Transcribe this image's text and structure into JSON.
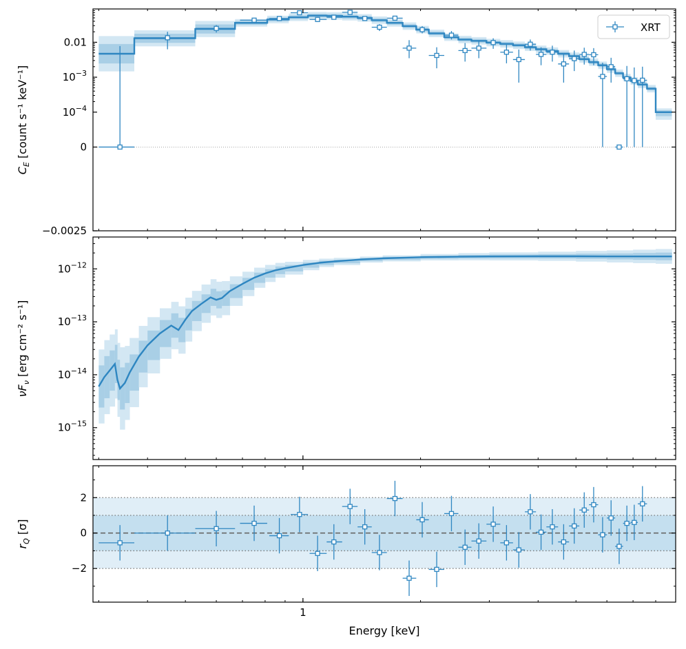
{
  "colors": {
    "model": "#2e86c1",
    "data": "#2e86c1",
    "band_dark": "#a9cfe6",
    "band_light": "#d3e7f3",
    "axis": "#000000",
    "ref_line": "#555555"
  },
  "chart_data": [
    {
      "type": "line",
      "panel": "counts",
      "ylabel_main": "C",
      "ylabel_sub": "E",
      "ylabel_rest": " [count s⁻¹ keV⁻¹]",
      "yscale": "symlog",
      "linthresh": 0.0001,
      "ylim": [
        -0.0025,
        0.09
      ],
      "ytick_labels": [
        {
          "value": 0.01,
          "text": "0.01"
        },
        {
          "value": 0.001,
          "base": "10",
          "exp": "−3"
        },
        {
          "value": 0.0001,
          "base": "10",
          "exp": "−4"
        },
        {
          "value": 0,
          "text": "0"
        },
        {
          "value": -0.0025,
          "text": "−0.0025"
        }
      ],
      "legend": {
        "label": "XRT",
        "position": "top-right"
      },
      "model_edges": [
        0.3,
        0.37,
        0.53,
        0.67,
        0.81,
        0.92,
        1.03,
        1.15,
        1.26,
        1.38,
        1.5,
        1.64,
        1.8,
        1.95,
        2.1,
        2.3,
        2.5,
        2.7,
        2.95,
        3.2,
        3.45,
        3.7,
        3.95,
        4.2,
        4.5,
        4.8,
        5.1,
        5.4,
        5.7,
        6.0,
        6.3,
        6.6,
        6.9,
        7.2,
        7.6,
        8.0,
        8.4,
        8.8
      ],
      "model_values": [
        0.0047,
        0.013,
        0.024,
        0.036,
        0.045,
        0.052,
        0.058,
        0.057,
        0.054,
        0.05,
        0.043,
        0.036,
        0.029,
        0.023,
        0.018,
        0.014,
        0.012,
        0.011,
        0.0098,
        0.009,
        0.0082,
        0.0072,
        0.0063,
        0.0056,
        0.0047,
        0.004,
        0.0033,
        0.0027,
        0.0022,
        0.0017,
        0.0013,
        0.00098,
        0.00078,
        0.00062,
        0.00047,
        0.0001,
        0.0001
      ],
      "points": [
        {
          "x": 0.34,
          "xlo": 0.3,
          "xhi": 0.37,
          "y": 0.0,
          "ylo": 0.0,
          "yhi": 0.0078
        },
        {
          "x": 0.45,
          "xlo": 0.37,
          "xhi": 0.53,
          "y": 0.0135,
          "ylo": 0.0063,
          "yhi": 0.02
        },
        {
          "x": 0.6,
          "xlo": 0.53,
          "xhi": 0.67,
          "y": 0.025,
          "ylo": 0.019,
          "yhi": 0.031
        },
        {
          "x": 0.75,
          "xlo": 0.69,
          "xhi": 0.81,
          "y": 0.043,
          "ylo": 0.035,
          "yhi": 0.05
        },
        {
          "x": 0.87,
          "xlo": 0.82,
          "xhi": 0.92,
          "y": 0.048,
          "ylo": 0.041,
          "yhi": 0.055
        },
        {
          "x": 0.98,
          "xlo": 0.93,
          "xhi": 1.03,
          "y": 0.07,
          "ylo": 0.062,
          "yhi": 0.078
        },
        {
          "x": 1.09,
          "xlo": 1.04,
          "xhi": 1.15,
          "y": 0.045,
          "ylo": 0.038,
          "yhi": 0.053
        },
        {
          "x": 1.2,
          "xlo": 1.15,
          "xhi": 1.26,
          "y": 0.052,
          "ylo": 0.045,
          "yhi": 0.06
        },
        {
          "x": 1.32,
          "xlo": 1.26,
          "xhi": 1.38,
          "y": 0.072,
          "ylo": 0.064,
          "yhi": 0.08
        },
        {
          "x": 1.44,
          "xlo": 1.38,
          "xhi": 1.5,
          "y": 0.048,
          "ylo": 0.041,
          "yhi": 0.055
        },
        {
          "x": 1.57,
          "xlo": 1.5,
          "xhi": 1.64,
          "y": 0.027,
          "ylo": 0.021,
          "yhi": 0.033
        },
        {
          "x": 1.72,
          "xlo": 1.64,
          "xhi": 1.8,
          "y": 0.049,
          "ylo": 0.042,
          "yhi": 0.056
        },
        {
          "x": 1.87,
          "xlo": 1.8,
          "xhi": 1.95,
          "y": 0.0068,
          "ylo": 0.0035,
          "yhi": 0.0115
        },
        {
          "x": 2.02,
          "xlo": 1.95,
          "xhi": 2.1,
          "y": 0.023,
          "ylo": 0.018,
          "yhi": 0.029
        },
        {
          "x": 2.2,
          "xlo": 2.1,
          "xhi": 2.3,
          "y": 0.0042,
          "ylo": 0.0018,
          "yhi": 0.0072
        },
        {
          "x": 2.4,
          "xlo": 2.3,
          "xhi": 2.5,
          "y": 0.016,
          "ylo": 0.012,
          "yhi": 0.021
        },
        {
          "x": 2.6,
          "xlo": 2.5,
          "xhi": 2.7,
          "y": 0.0058,
          "ylo": 0.0028,
          "yhi": 0.0095
        },
        {
          "x": 2.82,
          "xlo": 2.7,
          "xhi": 2.95,
          "y": 0.0068,
          "ylo": 0.0035,
          "yhi": 0.0105
        },
        {
          "x": 3.07,
          "xlo": 2.95,
          "xhi": 3.2,
          "y": 0.0098,
          "ylo": 0.0065,
          "yhi": 0.013
        },
        {
          "x": 3.32,
          "xlo": 3.2,
          "xhi": 3.45,
          "y": 0.0052,
          "ylo": 0.0025,
          "yhi": 0.0085
        },
        {
          "x": 3.57,
          "xlo": 3.45,
          "xhi": 3.7,
          "y": 0.0032,
          "ylo": 0.0007,
          "yhi": 0.0062
        },
        {
          "x": 3.82,
          "xlo": 3.7,
          "xhi": 3.95,
          "y": 0.0088,
          "ylo": 0.0058,
          "yhi": 0.012
        },
        {
          "x": 4.07,
          "xlo": 3.95,
          "xhi": 4.2,
          "y": 0.0045,
          "ylo": 0.0022,
          "yhi": 0.0072
        },
        {
          "x": 4.35,
          "xlo": 4.2,
          "xhi": 4.5,
          "y": 0.0052,
          "ylo": 0.0028,
          "yhi": 0.008
        },
        {
          "x": 4.65,
          "xlo": 4.5,
          "xhi": 4.8,
          "y": 0.0024,
          "ylo": 0.0007,
          "yhi": 0.0045
        },
        {
          "x": 4.95,
          "xlo": 4.8,
          "xhi": 5.1,
          "y": 0.0034,
          "ylo": 0.0015,
          "yhi": 0.0058
        },
        {
          "x": 5.25,
          "xlo": 5.1,
          "xhi": 5.4,
          "y": 0.0045,
          "ylo": 0.0023,
          "yhi": 0.007
        },
        {
          "x": 5.55,
          "xlo": 5.4,
          "xhi": 5.7,
          "y": 0.0044,
          "ylo": 0.0022,
          "yhi": 0.0068
        },
        {
          "x": 5.85,
          "xlo": 5.7,
          "xhi": 6.0,
          "y": 0.00105,
          "ylo": 0.0,
          "yhi": 0.0026
        },
        {
          "x": 6.15,
          "xlo": 6.0,
          "xhi": 6.3,
          "y": 0.002,
          "ylo": 0.0007,
          "yhi": 0.0036
        },
        {
          "x": 6.45,
          "xlo": 6.3,
          "xhi": 6.6,
          "y": 0.0,
          "ylo": 0.0,
          "yhi": 0.0
        },
        {
          "x": 6.75,
          "xlo": 6.6,
          "xhi": 6.9,
          "y": 0.0009,
          "ylo": 0.0,
          "yhi": 0.0021
        },
        {
          "x": 7.05,
          "xlo": 6.9,
          "xhi": 7.2,
          "y": 0.0008,
          "ylo": 0.0,
          "yhi": 0.0019
        },
        {
          "x": 7.4,
          "xlo": 7.2,
          "xhi": 7.6,
          "y": 0.00082,
          "ylo": 0.0,
          "yhi": 0.002
        }
      ]
    },
    {
      "type": "line",
      "panel": "flux",
      "ylabel_main": "νF",
      "ylabel_sub": "ν",
      "ylabel_rest": " [erg cm⁻² s⁻¹]",
      "yscale": "log",
      "ylim": [
        2.5e-16,
        4e-12
      ],
      "ytick_labels": [
        {
          "value": 1e-12,
          "base": "10",
          "exp": "−12"
        },
        {
          "value": 1e-13,
          "base": "10",
          "exp": "−13"
        },
        {
          "value": 1e-14,
          "base": "10",
          "exp": "−14"
        },
        {
          "value": 1e-15,
          "base": "10",
          "exp": "−15"
        }
      ],
      "x": [
        0.3,
        0.31,
        0.32,
        0.33,
        0.335,
        0.34,
        0.35,
        0.36,
        0.38,
        0.4,
        0.43,
        0.46,
        0.48,
        0.5,
        0.52,
        0.55,
        0.58,
        0.6,
        0.62,
        0.65,
        0.7,
        0.75,
        0.8,
        0.85,
        0.9,
        1.0,
        1.1,
        1.2,
        1.4,
        1.6,
        2.0,
        2.5,
        3.0,
        4.0,
        5.0,
        6.0,
        7.0,
        8.0,
        8.8
      ],
      "y": [
        6e-15,
        9e-15,
        1.2e-14,
        1.6e-14,
        8e-15,
        5.5e-15,
        7e-15,
        1.1e-14,
        2.2e-14,
        3.6e-14,
        6e-14,
        8.5e-14,
        7e-14,
        1.1e-13,
        1.6e-13,
        2.2e-13,
        2.9e-13,
        2.6e-13,
        2.8e-13,
        3.8e-13,
        5.2e-13,
        6.8e-13,
        8.2e-13,
        9.4e-13,
        1.03e-12,
        1.18e-12,
        1.3e-12,
        1.38e-12,
        1.5e-12,
        1.58e-12,
        1.66e-12,
        1.7e-12,
        1.72e-12,
        1.73e-12,
        1.73e-12,
        1.72e-12,
        1.72e-12,
        1.72e-12,
        1.72e-12
      ],
      "band1_factor": [
        2.5,
        2.5,
        2.4,
        2.3,
        2.4,
        2.5,
        2.4,
        2.2,
        2.0,
        1.9,
        1.8,
        1.7,
        1.7,
        1.6,
        1.55,
        1.5,
        1.45,
        1.45,
        1.4,
        1.35,
        1.3,
        1.25,
        1.2,
        1.18,
        1.15,
        1.12,
        1.1,
        1.08,
        1.07,
        1.07,
        1.07,
        1.08,
        1.09,
        1.1,
        1.12,
        1.14,
        1.16,
        1.18,
        1.2
      ],
      "band2_factor": [
        5,
        5,
        4.8,
        4.5,
        5,
        6,
        5,
        4.5,
        3.8,
        3.4,
        3.0,
        2.8,
        2.8,
        2.6,
        2.4,
        2.3,
        2.2,
        2.2,
        2.1,
        1.9,
        1.7,
        1.55,
        1.45,
        1.38,
        1.32,
        1.25,
        1.2,
        1.17,
        1.14,
        1.14,
        1.15,
        1.17,
        1.19,
        1.22,
        1.26,
        1.3,
        1.34,
        1.38,
        1.42
      ]
    },
    {
      "type": "scatter",
      "panel": "residuals",
      "ylabel_main": "r",
      "ylabel_sub": "Q",
      "ylabel_rest": " [σ]",
      "ylim": [
        -3.9,
        3.8
      ],
      "ytick_labels": [
        {
          "value": 2,
          "text": "2"
        },
        {
          "value": 0,
          "text": "0"
        },
        {
          "value": -2,
          "text": "−2"
        }
      ],
      "reference_lines": [
        2,
        1,
        0,
        -1,
        -2
      ],
      "points": [
        {
          "x": 0.34,
          "xlo": 0.3,
          "xhi": 0.37,
          "y": -0.55
        },
        {
          "x": 0.45,
          "xlo": 0.37,
          "xhi": 0.53,
          "y": 0.0
        },
        {
          "x": 0.6,
          "xlo": 0.53,
          "xhi": 0.67,
          "y": 0.25
        },
        {
          "x": 0.75,
          "xlo": 0.69,
          "xhi": 0.81,
          "y": 0.55
        },
        {
          "x": 0.87,
          "xlo": 0.82,
          "xhi": 0.92,
          "y": -0.15
        },
        {
          "x": 0.98,
          "xlo": 0.93,
          "xhi": 1.03,
          "y": 1.05
        },
        {
          "x": 1.09,
          "xlo": 1.04,
          "xhi": 1.15,
          "y": -1.15
        },
        {
          "x": 1.2,
          "xlo": 1.15,
          "xhi": 1.26,
          "y": -0.5
        },
        {
          "x": 1.32,
          "xlo": 1.26,
          "xhi": 1.38,
          "y": 1.5
        },
        {
          "x": 1.44,
          "xlo": 1.38,
          "xhi": 1.5,
          "y": 0.35
        },
        {
          "x": 1.57,
          "xlo": 1.5,
          "xhi": 1.64,
          "y": -1.1
        },
        {
          "x": 1.72,
          "xlo": 1.64,
          "xhi": 1.8,
          "y": 1.95
        },
        {
          "x": 1.87,
          "xlo": 1.8,
          "xhi": 1.95,
          "y": -2.55
        },
        {
          "x": 2.02,
          "xlo": 1.95,
          "xhi": 2.1,
          "y": 0.75
        },
        {
          "x": 2.2,
          "xlo": 2.1,
          "xhi": 2.3,
          "y": -2.05
        },
        {
          "x": 2.4,
          "xlo": 2.3,
          "xhi": 2.5,
          "y": 1.1
        },
        {
          "x": 2.6,
          "xlo": 2.5,
          "xhi": 2.7,
          "y": -0.8
        },
        {
          "x": 2.82,
          "xlo": 2.7,
          "xhi": 2.95,
          "y": -0.45
        },
        {
          "x": 3.07,
          "xlo": 2.95,
          "xhi": 3.2,
          "y": 0.5
        },
        {
          "x": 3.32,
          "xlo": 3.2,
          "xhi": 3.45,
          "y": -0.55
        },
        {
          "x": 3.57,
          "xlo": 3.45,
          "xhi": 3.7,
          "y": -0.95
        },
        {
          "x": 3.82,
          "xlo": 3.7,
          "xhi": 3.95,
          "y": 1.2
        },
        {
          "x": 4.07,
          "xlo": 3.95,
          "xhi": 4.2,
          "y": 0.05
        },
        {
          "x": 4.35,
          "xlo": 4.2,
          "xhi": 4.5,
          "y": 0.35
        },
        {
          "x": 4.65,
          "xlo": 4.5,
          "xhi": 4.8,
          "y": -0.5
        },
        {
          "x": 4.95,
          "xlo": 4.8,
          "xhi": 5.1,
          "y": 0.4
        },
        {
          "x": 5.25,
          "xlo": 5.1,
          "xhi": 5.4,
          "y": 1.3
        },
        {
          "x": 5.55,
          "xlo": 5.4,
          "xhi": 5.7,
          "y": 1.6
        },
        {
          "x": 5.85,
          "xlo": 5.7,
          "xhi": 6.0,
          "y": -0.1
        },
        {
          "x": 6.15,
          "xlo": 6.0,
          "xhi": 6.3,
          "y": 0.85
        },
        {
          "x": 6.45,
          "xlo": 6.3,
          "xhi": 6.6,
          "y": -0.75
        },
        {
          "x": 6.75,
          "xlo": 6.6,
          "xhi": 6.9,
          "y": 0.55
        },
        {
          "x": 7.05,
          "xlo": 6.9,
          "xhi": 7.2,
          "y": 0.6
        },
        {
          "x": 7.4,
          "xlo": 7.2,
          "xhi": 7.6,
          "y": 1.65
        }
      ]
    }
  ],
  "xaxis": {
    "label": "Energy [keV]",
    "scale": "log",
    "xlim": [
      0.29,
      9.0
    ],
    "tick_labels": [
      {
        "value": 1,
        "text": "1"
      }
    ]
  }
}
